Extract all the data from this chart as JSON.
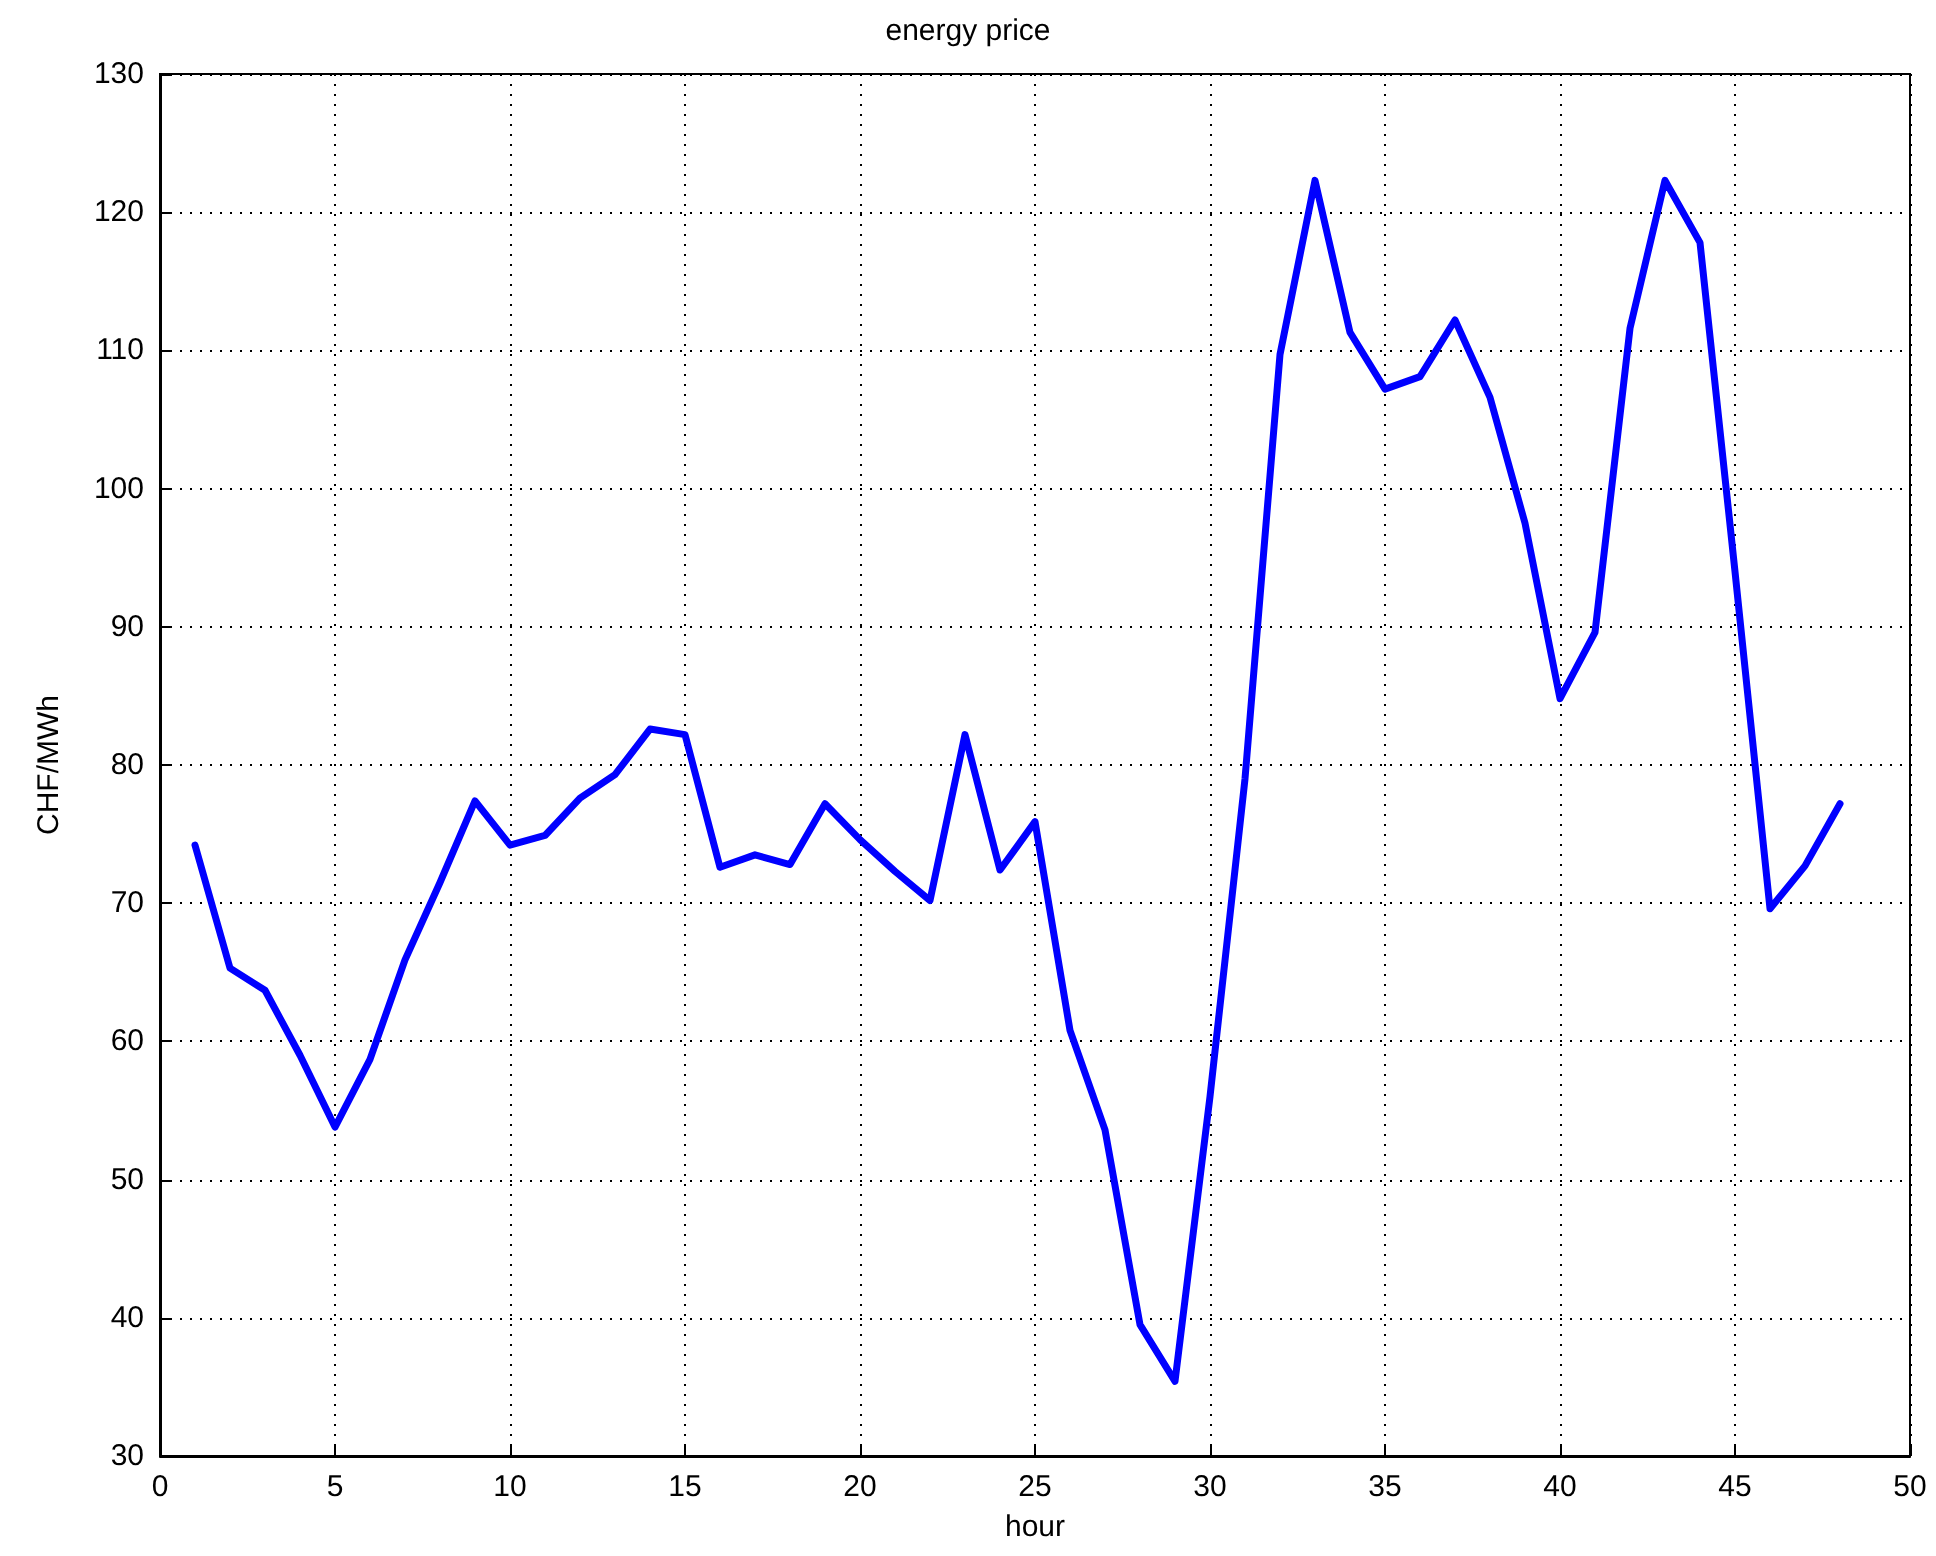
{
  "chart_data": {
    "type": "line",
    "title": "energy price",
    "xlabel": "hour",
    "ylabel": "CHF/MWh",
    "x": [
      1,
      2,
      3,
      4,
      5,
      6,
      7,
      8,
      9,
      10,
      11,
      12,
      13,
      14,
      15,
      16,
      17,
      18,
      19,
      20,
      21,
      22,
      23,
      24,
      25,
      26,
      27,
      28,
      29,
      30,
      31,
      32,
      33,
      34,
      35,
      36,
      37,
      38,
      39,
      40,
      41,
      42,
      43,
      44,
      45,
      46,
      47,
      48
    ],
    "series": [
      {
        "color": "#0000ff",
        "values": [
          74.2,
          65.3,
          63.7,
          59,
          53.8,
          58.7,
          65.9,
          71.5,
          77.4,
          74.2,
          74.9,
          77.6,
          79.3,
          82.6,
          82.2,
          72.6,
          73.5,
          72.8,
          77.2,
          74.6,
          72.3,
          70.2,
          82.2,
          72.4,
          75.9,
          60.8,
          53.6,
          39.5,
          35.4,
          56,
          79,
          109.7,
          122.3,
          111.3,
          107.2,
          108.1,
          112.2,
          106.6,
          97.5,
          84.8,
          89.6,
          111.6,
          122.3,
          117.8,
          94,
          69.6,
          72.7,
          77.2
        ]
      }
    ],
    "xlim": [
      0,
      50
    ],
    "xticks": [
      0,
      5,
      10,
      15,
      20,
      25,
      30,
      35,
      40,
      45,
      50
    ],
    "ylim": [
      30,
      130
    ],
    "yticks": [
      30,
      40,
      50,
      60,
      70,
      80,
      90,
      100,
      110,
      120,
      130
    ],
    "grid": true,
    "marker": "none",
    "line_style": "solid"
  }
}
